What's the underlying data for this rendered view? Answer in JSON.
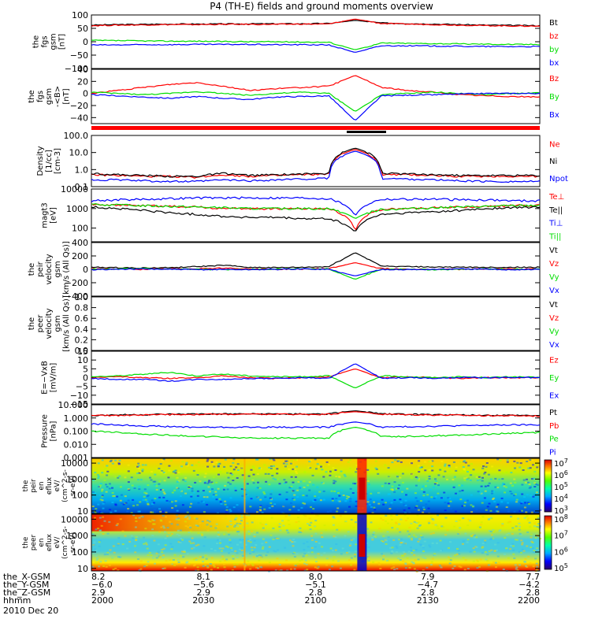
{
  "title": "P4 (TH-E) fields and ground moments overview",
  "colors": {
    "black": "#000000",
    "red": "#ff0000",
    "green": "#00dd00",
    "blue": "#0000ff",
    "bar_red": "#ff0000"
  },
  "chart_data": [
    {
      "type": "line",
      "id": "fgs_gsm",
      "ylabel_lines": [
        "the",
        "fgs",
        "gsm",
        "[nT]"
      ],
      "ylim": [
        -100,
        100
      ],
      "yticks": [
        100,
        50,
        0,
        -50,
        -100
      ],
      "ytick_labels": [
        "100",
        "50",
        "0",
        "−50",
        "−100"
      ],
      "series": [
        {
          "name": "Bt",
          "color": "black",
          "values": [
            62,
            64,
            65,
            66,
            66,
            66,
            67,
            67,
            67,
            68,
            80,
            70,
            68,
            66,
            64,
            62,
            61,
            60
          ]
        },
        {
          "name": "bz",
          "color": "red",
          "values": [
            60,
            62,
            63,
            64,
            64,
            65,
            65,
            65,
            66,
            66,
            85,
            68,
            66,
            64,
            62,
            60,
            59,
            58
          ]
        },
        {
          "name": "by",
          "color": "green",
          "values": [
            5,
            4,
            3,
            2,
            2,
            1,
            0,
            0,
            -1,
            -2,
            -30,
            -5,
            -6,
            -7,
            -8,
            -9,
            -10,
            -10
          ]
        },
        {
          "name": "bx",
          "color": "blue",
          "values": [
            -12,
            -12,
            -11,
            -11,
            -10,
            -10,
            -10,
            -11,
            -11,
            -12,
            -40,
            -15,
            -15,
            -16,
            -17,
            -18,
            -18,
            -18
          ]
        }
      ]
    },
    {
      "type": "line",
      "id": "fgs_gsm_detrended",
      "ylabel_lines": [
        "the",
        "fgs",
        "gsm",
        "-<B>",
        "[nT]"
      ],
      "ylim": [
        -50,
        40
      ],
      "yticks": [
        40,
        20,
        0,
        -20,
        -40
      ],
      "ytick_labels": [
        "40",
        "20",
        "0",
        "−20",
        "−40"
      ],
      "series": [
        {
          "name": "Bz",
          "color": "red",
          "values": [
            0,
            5,
            10,
            15,
            18,
            12,
            5,
            8,
            10,
            12,
            30,
            10,
            5,
            2,
            -2,
            -4,
            -5,
            -6
          ]
        },
        {
          "name": "By",
          "color": "green",
          "values": [
            2,
            0,
            -2,
            0,
            3,
            0,
            -3,
            0,
            2,
            0,
            -30,
            -2,
            0,
            2,
            0,
            -2,
            0,
            1
          ]
        },
        {
          "name": "Bx",
          "color": "blue",
          "values": [
            -2,
            -4,
            -6,
            -8,
            -5,
            -8,
            -10,
            -6,
            -5,
            -4,
            -45,
            -4,
            -3,
            -2,
            -1,
            0,
            0,
            0
          ]
        }
      ]
    },
    {
      "type": "line",
      "id": "density",
      "yscale": "log",
      "ylabel_lines": [
        "Density",
        "[1/cc]",
        "[cm-3]"
      ],
      "ylim": [
        0.1,
        100
      ],
      "yticks": [
        100,
        10,
        1,
        0.1
      ],
      "ytick_labels": [
        "100.0",
        "10.0",
        "1.0",
        "0.1"
      ],
      "series": [
        {
          "name": "Ne",
          "color": "red",
          "values": [
            0.5,
            0.45,
            0.4,
            0.4,
            0.35,
            0.5,
            0.4,
            0.45,
            0.5,
            0.55,
            15,
            0.5,
            0.5,
            0.45,
            0.4,
            0.4,
            0.4,
            0.4
          ]
        },
        {
          "name": "Ni",
          "color": "black",
          "values": [
            0.6,
            0.5,
            0.45,
            0.4,
            0.4,
            0.6,
            0.45,
            0.5,
            0.55,
            0.6,
            18,
            0.6,
            0.55,
            0.5,
            0.45,
            0.45,
            0.45,
            0.45
          ]
        },
        {
          "name": "Npot",
          "color": "blue",
          "values": [
            0.25,
            0.25,
            0.22,
            0.2,
            0.2,
            0.25,
            0.22,
            0.25,
            0.28,
            0.3,
            12,
            0.3,
            0.28,
            0.25,
            0.22,
            0.2,
            0.2,
            0.2
          ]
        }
      ]
    },
    {
      "type": "line",
      "id": "temperature",
      "yscale": "log",
      "ylabel_lines": [
        "magt3",
        "[eV]"
      ],
      "ylim": [
        20,
        10000
      ],
      "yticks": [
        10000,
        1000,
        100
      ],
      "ytick_labels": [
        "10000",
        "1000",
        "100"
      ],
      "series": [
        {
          "name": "Te⊥",
          "color": "red",
          "values": [
            1700,
            1500,
            1400,
            1300,
            1200,
            1000,
            1000,
            1000,
            1000,
            1000,
            60,
            900,
            1000,
            1100,
            1200,
            1300,
            1400,
            1500
          ]
        },
        {
          "name": "Te||",
          "color": "black",
          "values": [
            1200,
            1000,
            800,
            600,
            500,
            400,
            350,
            350,
            300,
            300,
            60,
            500,
            600,
            700,
            800,
            1000,
            1100,
            1200
          ]
        },
        {
          "name": "Ti⊥",
          "color": "blue",
          "values": [
            2500,
            2800,
            3000,
            3200,
            3500,
            3500,
            3500,
            3500,
            3500,
            3200,
            400,
            3000,
            3000,
            3000,
            2800,
            2800,
            2500,
            2500
          ]
        },
        {
          "name": "Ti||",
          "color": "green",
          "values": [
            1600,
            1500,
            1400,
            1300,
            1200,
            1100,
            1000,
            1000,
            1000,
            1000,
            300,
            900,
            1000,
            1100,
            1200,
            1300,
            1400,
            1500
          ]
        }
      ]
    },
    {
      "type": "line",
      "id": "peir_velocity",
      "ylabel_lines": [
        "the",
        "peir",
        "velocity",
        "gsm",
        "[km/s (All Qs)]"
      ],
      "ylim": [
        -400,
        400
      ],
      "yticks": [
        400,
        200,
        0,
        -200,
        -400
      ],
      "ytick_labels": [
        "400",
        "200",
        "0",
        "−200",
        "−400"
      ],
      "series": [
        {
          "name": "Vt",
          "color": "black",
          "values": [
            30,
            25,
            20,
            25,
            40,
            60,
            30,
            25,
            30,
            40,
            250,
            50,
            40,
            35,
            30,
            30,
            30,
            30
          ]
        },
        {
          "name": "Vz",
          "color": "red",
          "values": [
            10,
            5,
            0,
            5,
            10,
            20,
            5,
            0,
            5,
            10,
            100,
            10,
            5,
            0,
            0,
            5,
            5,
            5
          ]
        },
        {
          "name": "Vy",
          "color": "green",
          "values": [
            0,
            5,
            10,
            5,
            0,
            -5,
            0,
            5,
            10,
            5,
            -150,
            5,
            0,
            -5,
            0,
            5,
            0,
            0
          ]
        },
        {
          "name": "Vx",
          "color": "blue",
          "values": [
            -5,
            0,
            5,
            0,
            -5,
            0,
            -5,
            0,
            5,
            0,
            -100,
            0,
            -5,
            0,
            5,
            0,
            -5,
            0
          ]
        }
      ]
    },
    {
      "type": "line",
      "id": "peer_velocity",
      "ylabel_lines": [
        "the",
        "peer",
        "velocity",
        "gsm",
        "[km/s (All Qs)]"
      ],
      "ylim": [
        0,
        1
      ],
      "yticks": [
        1,
        0.8,
        0.6,
        0.4,
        0.2,
        0
      ],
      "ytick_labels": [
        "1.0",
        "0.8",
        "0.6",
        "0.4",
        "0.2",
        "0.0"
      ],
      "series": [
        {
          "name": "Vt",
          "color": "black",
          "values": []
        },
        {
          "name": "Vz",
          "color": "red",
          "values": []
        },
        {
          "name": "Vy",
          "color": "green",
          "values": []
        },
        {
          "name": "Vx",
          "color": "blue",
          "values": []
        }
      ]
    },
    {
      "type": "line",
      "id": "efield",
      "ylabel_lines": [
        "E=−VxB",
        "[mV/m]"
      ],
      "ylim": [
        -15,
        15
      ],
      "yticks": [
        15,
        10,
        5,
        0,
        -5,
        -10,
        -15
      ],
      "ytick_labels": [
        "15",
        "10",
        "5",
        "0",
        "−5",
        "−10",
        "−15"
      ],
      "series": [
        {
          "name": "Ez",
          "color": "red",
          "values": [
            0,
            0.5,
            0,
            -0.5,
            0,
            1,
            0,
            -0.5,
            0,
            0.5,
            5,
            0,
            0.5,
            0,
            -0.5,
            0,
            0,
            0
          ]
        },
        {
          "name": "Ey",
          "color": "green",
          "values": [
            0.5,
            1,
            2,
            3,
            1,
            2,
            1,
            0.5,
            0.5,
            1,
            -6,
            1,
            0.5,
            0,
            0.5,
            0,
            0.5,
            0
          ]
        },
        {
          "name": "Ex",
          "color": "blue",
          "values": [
            -0.5,
            -1,
            -1,
            -2,
            -1,
            -1,
            -0.5,
            -0.5,
            0,
            -0.5,
            8,
            -0.5,
            0,
            -0.5,
            0,
            0,
            0,
            0
          ]
        }
      ]
    },
    {
      "type": "line",
      "id": "pressure",
      "yscale": "log",
      "ylabel_lines": [
        "Pressure",
        "[nPa]"
      ],
      "ylim": [
        0.001,
        10
      ],
      "yticks": [
        10,
        1,
        0.1,
        0.01,
        0.001
      ],
      "ytick_labels": [
        "10.000",
        "1.000",
        "0.100",
        "0.010",
        "0.001"
      ],
      "series": [
        {
          "name": "Pt",
          "color": "black",
          "values": [
            1.6,
            1.7,
            1.8,
            1.9,
            2.0,
            2.0,
            2.0,
            2.0,
            2.0,
            2.0,
            3.5,
            2.0,
            1.9,
            1.8,
            1.7,
            1.6,
            1.6,
            1.5
          ]
        },
        {
          "name": "Pb",
          "color": "red",
          "values": [
            1.5,
            1.6,
            1.7,
            1.8,
            1.9,
            1.9,
            1.9,
            1.9,
            1.9,
            1.9,
            3.0,
            1.9,
            1.8,
            1.7,
            1.6,
            1.5,
            1.5,
            1.4
          ]
        },
        {
          "name": "Pe",
          "color": "green",
          "values": [
            0.1,
            0.08,
            0.06,
            0.05,
            0.04,
            0.035,
            0.03,
            0.03,
            0.03,
            0.03,
            0.2,
            0.04,
            0.04,
            0.045,
            0.05,
            0.06,
            0.07,
            0.08
          ]
        },
        {
          "name": "Pi",
          "color": "blue",
          "values": [
            0.35,
            0.3,
            0.25,
            0.22,
            0.2,
            0.2,
            0.2,
            0.2,
            0.2,
            0.2,
            0.5,
            0.2,
            0.22,
            0.24,
            0.26,
            0.28,
            0.3,
            0.3
          ]
        }
      ]
    },
    {
      "type": "heatmap",
      "id": "peir_eflux",
      "yscale": "log",
      "ylabel_lines": [
        "the",
        "peir",
        "en",
        "eflux",
        "eV/",
        "(cm^2-s-",
        "sr-eV)"
      ],
      "ylim": [
        7,
        20000
      ],
      "yticks": [
        10000,
        1000,
        100,
        10
      ],
      "ytick_labels": [
        "10000",
        "1000",
        "100",
        "10"
      ],
      "colorbar": {
        "scale": "log",
        "range": [
          1000,
          10000000
        ],
        "labels": [
          "10^7",
          "10^6",
          "10^5",
          "10^4",
          "10^3"
        ]
      }
    },
    {
      "type": "heatmap",
      "id": "peer_eflux",
      "yscale": "log",
      "ylabel_lines": [
        "the",
        "peer",
        "en",
        "eflux",
        "eV/",
        "(cm^2-s-",
        "sr-eV)"
      ],
      "ylim": [
        7,
        20000
      ],
      "yticks": [
        10000,
        1000,
        100,
        10
      ],
      "ytick_labels": [
        "10000",
        "1000",
        "100",
        "10"
      ],
      "colorbar": {
        "scale": "log",
        "range": [
          100000,
          1000000000
        ],
        "labels": [
          "10^8",
          "10^7",
          "10^6",
          "10^5"
        ]
      }
    }
  ],
  "x_axis": {
    "rows": [
      {
        "label": "the_X-GSM",
        "values": [
          "8.2",
          "8.1",
          "8.0",
          "7.9",
          "7.7"
        ]
      },
      {
        "label": "the_Y-GSM",
        "values": [
          "−6.0",
          "−5.6",
          "−5.1",
          "−4.7",
          "−4.2"
        ]
      },
      {
        "label": "the_Z-GSM",
        "values": [
          "2.9",
          "2.9",
          "2.8",
          "2.8",
          "2.8"
        ]
      },
      {
        "label": "hhmm",
        "values": [
          "2000",
          "2030",
          "2100",
          "2130",
          "2200"
        ]
      }
    ],
    "date": "2010 Dec 20"
  }
}
